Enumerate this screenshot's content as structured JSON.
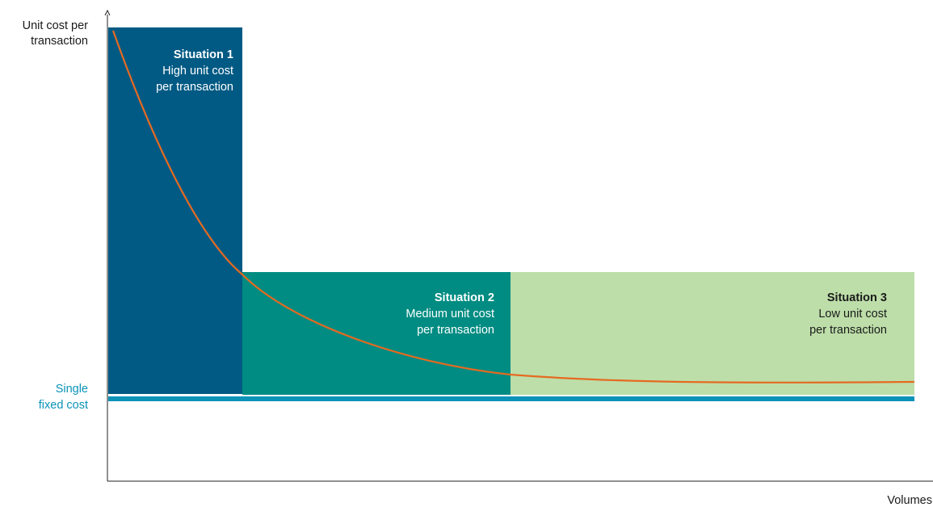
{
  "axes": {
    "y_label_line1": "Unit cost per",
    "y_label_line2": "transaction",
    "x_label": "Volumes"
  },
  "fixed_cost": {
    "label_line1": "Single",
    "label_line2": "fixed cost",
    "color": "#0b93b8"
  },
  "situations": [
    {
      "title": "Situation 1",
      "line1": "High unit cost",
      "line2": "per transaction",
      "color": "#015a84",
      "text_color": "#ffffff"
    },
    {
      "title": "Situation 2",
      "line1": "Medium unit cost",
      "line2": "per transaction",
      "color": "#008c82",
      "text_color": "#ffffff"
    },
    {
      "title": "Situation 3",
      "line1": "Low unit cost",
      "line2": "per transaction",
      "color": "#bddea9",
      "text_color": "#1a1a1a"
    }
  ],
  "curve": {
    "color": "#e56a21"
  }
}
